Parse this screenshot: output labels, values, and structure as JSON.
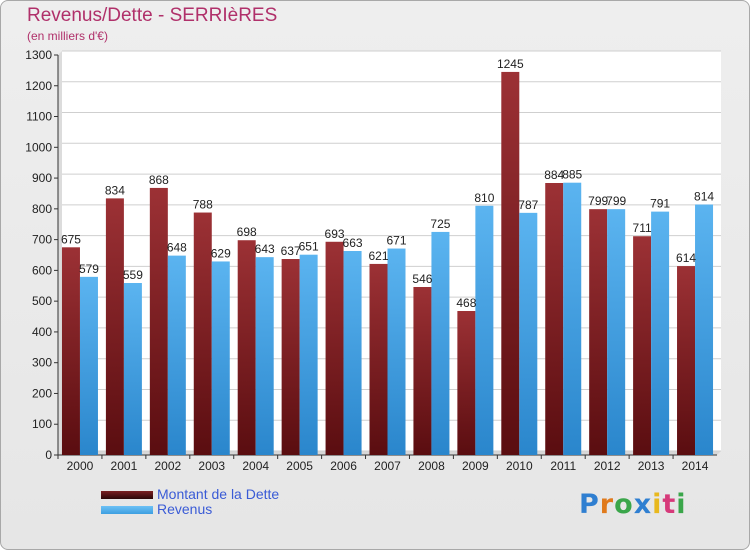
{
  "chart_data": {
    "type": "bar",
    "title": "Revenus/Dette - SERRIèRES",
    "subtitle": "(en milliers d'€)",
    "categories": [
      "2000",
      "2001",
      "2002",
      "2003",
      "2004",
      "2005",
      "2006",
      "2007",
      "2008",
      "2009",
      "2010",
      "2011",
      "2012",
      "2013",
      "2014"
    ],
    "series": [
      {
        "name": "Montant de la Dette",
        "color": "#7a1f22",
        "values": [
          675,
          834,
          868,
          788,
          698,
          637,
          693,
          621,
          546,
          468,
          1245,
          884,
          799,
          711,
          614
        ]
      },
      {
        "name": "Revenus",
        "color": "#3d9fe0",
        "values": [
          579,
          559,
          648,
          629,
          643,
          651,
          663,
          671,
          725,
          810,
          787,
          885,
          799,
          791,
          814
        ]
      }
    ],
    "ylim": [
      0,
      1300
    ],
    "yticks": [
      0,
      100,
      200,
      300,
      400,
      500,
      600,
      700,
      800,
      900,
      1000,
      1100,
      1200,
      1300
    ],
    "grid": true,
    "legend_position": "bottom-left"
  },
  "logo_text": "Proxiti"
}
